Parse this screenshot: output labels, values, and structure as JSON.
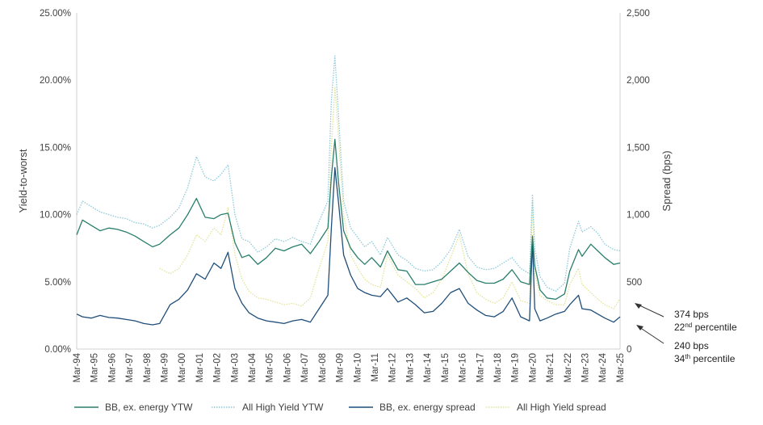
{
  "chart_data": {
    "type": "line",
    "ylabel": "Yield-to-worst",
    "y2label": "Spread (bps)",
    "y_ticks": [
      "0.00%",
      "5.00%",
      "10.00%",
      "15.00%",
      "20.00%",
      "25.00%"
    ],
    "y_range": [
      0,
      25
    ],
    "y2_ticks": [
      "0",
      "500",
      "1,000",
      "1,500",
      "2,000",
      "2,500"
    ],
    "y2_range": [
      0,
      2500
    ],
    "x_range": [
      1994.17,
      2025.17
    ],
    "x_labels": [
      "Mar-94",
      "Mar-95",
      "Mar-96",
      "Mar-97",
      "Mar-98",
      "Mar-99",
      "Mar-00",
      "Mar-01",
      "Mar-02",
      "Mar-03",
      "Mar-04",
      "Mar-05",
      "Mar-06",
      "Mar-07",
      "Mar-08",
      "Mar-09",
      "Mar-10",
      "Mar-11",
      "Mar-12",
      "Mar-13",
      "Mar-14",
      "Mar-15",
      "Mar-16",
      "Mar-17",
      "Mar-18",
      "Mar-19",
      "Mar-20",
      "Mar-21",
      "Mar-22",
      "Mar-23",
      "Mar-24",
      "Mar-25"
    ],
    "series": [
      {
        "name": "BB, ex. energy YTW",
        "axis": "left",
        "color": "#2a7e6c",
        "style": "solid",
        "x": [
          1994.17,
          1994.5,
          1995.0,
          1995.5,
          1996.0,
          1996.5,
          1997.0,
          1997.5,
          1998.0,
          1998.5,
          1998.9,
          1999.5,
          2000.0,
          2000.5,
          2001.0,
          2001.5,
          2002.0,
          2002.4,
          2002.8,
          2003.2,
          2003.6,
          2004.0,
          2004.5,
          2005.0,
          2005.5,
          2006.0,
          2006.5,
          2007.0,
          2007.5,
          2008.0,
          2008.5,
          2008.7,
          2008.9,
          2009.1,
          2009.4,
          2009.8,
          2010.2,
          2010.6,
          2011.0,
          2011.5,
          2011.9,
          2012.5,
          2013.0,
          2013.5,
          2014.0,
          2014.5,
          2015.0,
          2015.5,
          2016.0,
          2016.5,
          2017.0,
          2017.5,
          2018.0,
          2018.5,
          2019.0,
          2019.5,
          2020.0,
          2020.17,
          2020.3,
          2020.6,
          2021.0,
          2021.5,
          2022.0,
          2022.3,
          2022.8,
          2023.0,
          2023.5,
          2023.9,
          2024.3,
          2024.8,
          2025.17
        ],
        "values": [
          8.5,
          9.6,
          9.2,
          8.8,
          9.0,
          8.9,
          8.7,
          8.4,
          8.0,
          7.6,
          7.8,
          8.5,
          9.0,
          10.0,
          11.2,
          9.8,
          9.7,
          10.0,
          10.1,
          7.9,
          6.8,
          7.0,
          6.3,
          6.8,
          7.5,
          7.3,
          7.6,
          7.8,
          7.1,
          8.0,
          9.0,
          12.8,
          15.6,
          12.5,
          8.8,
          7.5,
          6.8,
          6.3,
          6.8,
          6.1,
          7.3,
          5.9,
          5.8,
          4.8,
          4.8,
          5.0,
          5.2,
          5.8,
          6.4,
          5.7,
          5.1,
          4.9,
          4.9,
          5.2,
          5.9,
          5.0,
          4.8,
          8.4,
          6.2,
          4.4,
          3.8,
          3.7,
          4.1,
          5.8,
          7.4,
          6.9,
          7.8,
          7.3,
          6.8,
          6.3,
          6.4
        ]
      },
      {
        "name": "All High Yield YTW",
        "axis": "left",
        "color": "#8ec9dc",
        "style": "dotted",
        "x": [
          1994.17,
          1994.5,
          1995.0,
          1995.5,
          1996.0,
          1996.5,
          1997.0,
          1997.5,
          1998.0,
          1998.5,
          1998.9,
          1999.5,
          2000.0,
          2000.5,
          2001.0,
          2001.5,
          2002.0,
          2002.4,
          2002.8,
          2003.2,
          2003.6,
          2004.0,
          2004.5,
          2005.0,
          2005.5,
          2006.0,
          2006.5,
          2007.0,
          2007.5,
          2008.0,
          2008.5,
          2008.7,
          2008.9,
          2009.1,
          2009.4,
          2009.8,
          2010.2,
          2010.6,
          2011.0,
          2011.5,
          2011.9,
          2012.5,
          2013.0,
          2013.5,
          2014.0,
          2014.5,
          2015.0,
          2015.5,
          2016.0,
          2016.5,
          2017.0,
          2017.5,
          2018.0,
          2018.5,
          2019.0,
          2019.5,
          2020.0,
          2020.17,
          2020.3,
          2020.6,
          2021.0,
          2021.5,
          2022.0,
          2022.3,
          2022.8,
          2023.0,
          2023.5,
          2023.9,
          2024.3,
          2024.8,
          2025.17
        ],
        "values": [
          10.0,
          11.0,
          10.6,
          10.2,
          10.0,
          9.8,
          9.7,
          9.4,
          9.3,
          9.0,
          9.2,
          9.8,
          10.5,
          12.0,
          14.3,
          12.8,
          12.5,
          13.0,
          13.7,
          10.0,
          8.2,
          8.0,
          7.2,
          7.6,
          8.2,
          8.0,
          8.3,
          8.0,
          7.8,
          9.5,
          11.0,
          18.5,
          21.8,
          17.5,
          11.0,
          9.0,
          8.3,
          7.6,
          8.0,
          7.0,
          8.3,
          7.0,
          6.6,
          6.0,
          5.8,
          5.9,
          6.5,
          7.4,
          8.9,
          6.9,
          6.1,
          5.9,
          6.0,
          6.4,
          6.8,
          6.0,
          5.6,
          11.5,
          7.5,
          5.4,
          4.6,
          4.3,
          4.9,
          7.5,
          9.5,
          8.7,
          9.1,
          8.6,
          7.8,
          7.4,
          7.3
        ]
      },
      {
        "name": "BB, ex. energy spread",
        "axis": "right",
        "color": "#1f4e79",
        "style": "solid",
        "x": [
          1994.17,
          1994.5,
          1995.0,
          1995.5,
          1996.0,
          1996.5,
          1997.0,
          1997.5,
          1998.0,
          1998.5,
          1998.9,
          1999.5,
          2000.0,
          2000.5,
          2001.0,
          2001.5,
          2002.0,
          2002.4,
          2002.8,
          2003.2,
          2003.6,
          2004.0,
          2004.5,
          2005.0,
          2005.5,
          2006.0,
          2006.5,
          2007.0,
          2007.5,
          2008.0,
          2008.5,
          2008.7,
          2008.9,
          2009.1,
          2009.4,
          2009.8,
          2010.2,
          2010.6,
          2011.0,
          2011.5,
          2011.9,
          2012.5,
          2013.0,
          2013.5,
          2014.0,
          2014.5,
          2015.0,
          2015.5,
          2016.0,
          2016.5,
          2017.0,
          2017.5,
          2018.0,
          2018.5,
          2019.0,
          2019.5,
          2020.0,
          2020.17,
          2020.3,
          2020.6,
          2021.0,
          2021.5,
          2022.0,
          2022.3,
          2022.8,
          2023.0,
          2023.5,
          2023.9,
          2024.3,
          2024.8,
          2025.17
        ],
        "values": [
          260,
          240,
          230,
          250,
          235,
          230,
          220,
          210,
          190,
          180,
          190,
          330,
          370,
          440,
          560,
          520,
          640,
          600,
          720,
          450,
          340,
          270,
          230,
          210,
          200,
          190,
          210,
          220,
          200,
          300,
          400,
          900,
          1350,
          1100,
          700,
          550,
          450,
          420,
          400,
          390,
          450,
          350,
          380,
          330,
          270,
          280,
          340,
          420,
          450,
          340,
          290,
          250,
          240,
          280,
          380,
          240,
          210,
          800,
          300,
          210,
          230,
          260,
          280,
          330,
          400,
          300,
          290,
          260,
          230,
          200,
          240
        ]
      },
      {
        "name": "All High Yield spread",
        "axis": "right",
        "color": "#e3e39a",
        "style": "dotted",
        "x": [
          1998.9,
          1999.5,
          2000.0,
          2000.5,
          2001.0,
          2001.5,
          2002.0,
          2002.4,
          2002.8,
          2003.2,
          2003.6,
          2004.0,
          2004.5,
          2005.0,
          2005.5,
          2006.0,
          2006.5,
          2007.0,
          2007.5,
          2008.0,
          2008.5,
          2008.7,
          2008.9,
          2009.1,
          2009.4,
          2009.8,
          2010.2,
          2010.6,
          2011.0,
          2011.5,
          2011.9,
          2012.5,
          2013.0,
          2013.5,
          2014.0,
          2014.5,
          2015.0,
          2015.5,
          2016.0,
          2016.5,
          2017.0,
          2017.5,
          2018.0,
          2018.5,
          2019.0,
          2019.5,
          2020.0,
          2020.17,
          2020.3,
          2020.6,
          2021.0,
          2021.5,
          2022.0,
          2022.3,
          2022.8,
          2023.0,
          2023.5,
          2023.9,
          2024.3,
          2024.8,
          2025.17
        ],
        "values": [
          600,
          560,
          600,
          700,
          850,
          800,
          900,
          850,
          1050,
          700,
          520,
          430,
          380,
          370,
          350,
          330,
          340,
          320,
          380,
          600,
          800,
          1500,
          1950,
          1600,
          1000,
          700,
          600,
          520,
          480,
          460,
          700,
          550,
          500,
          450,
          380,
          420,
          520,
          680,
          850,
          560,
          420,
          370,
          340,
          380,
          500,
          360,
          340,
          1100,
          560,
          400,
          360,
          330,
          330,
          480,
          600,
          480,
          420,
          370,
          330,
          300,
          374
        ]
      }
    ],
    "annotations": [
      {
        "value": "374 bps",
        "label_sup": "nd",
        "label_pre": "22",
        "label_post": " percentile"
      },
      {
        "value": "240 bps",
        "label_sup": "th",
        "label_pre": "34",
        "label_post": " percentile"
      }
    ],
    "legend": {
      "position": "bottom"
    }
  }
}
